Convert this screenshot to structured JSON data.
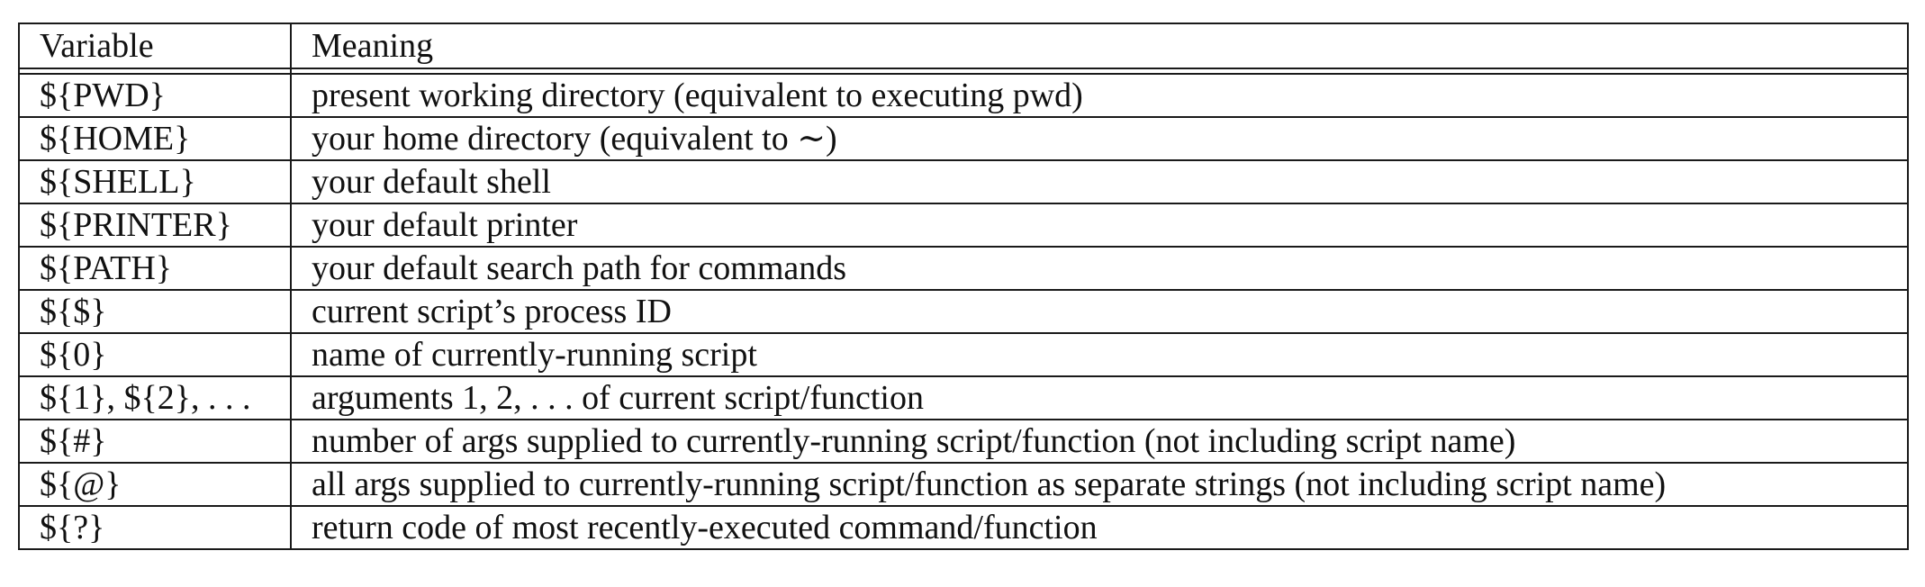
{
  "table": {
    "headers": [
      "Variable",
      "Meaning"
    ],
    "rows": [
      {
        "variable": "${PWD}",
        "meaning": "present working directory (equivalent to executing pwd)"
      },
      {
        "variable": "${HOME}",
        "meaning": "your home directory (equivalent to ∼)"
      },
      {
        "variable": "${SHELL}",
        "meaning": "your default shell"
      },
      {
        "variable": "${PRINTER}",
        "meaning": "your default printer"
      },
      {
        "variable": "${PATH}",
        "meaning": "your default search path for commands"
      },
      {
        "variable": "${$}",
        "meaning": "current script’s process ID"
      },
      {
        "variable": "${0}",
        "meaning": "name of currently-running script"
      },
      {
        "variable": "${1}, ${2}, . . .",
        "meaning": "arguments 1, 2, . . . of current script/function"
      },
      {
        "variable": "${#}",
        "meaning": "number of args supplied to currently-running script/function (not including script name)"
      },
      {
        "variable": "${@}",
        "meaning": "all args supplied to currently-running script/function as separate strings (not including script name)"
      },
      {
        "variable": "${?}",
        "meaning": "return code of most recently-executed command/function"
      }
    ]
  }
}
